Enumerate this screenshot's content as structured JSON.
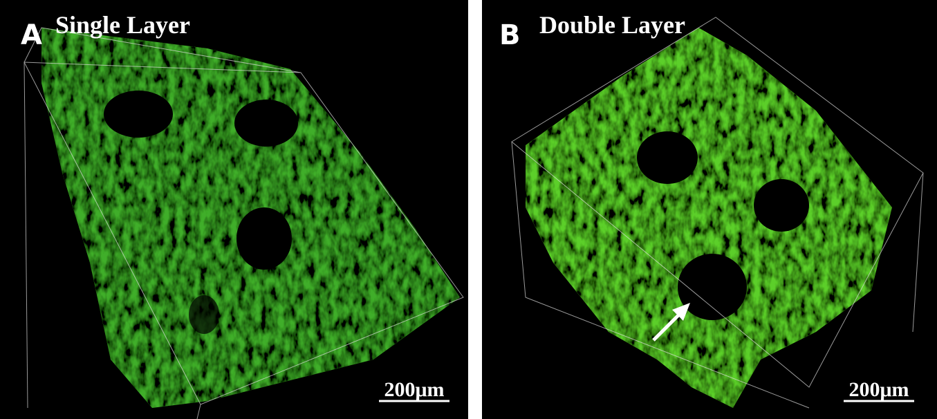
{
  "panels": [
    {
      "letter": "A",
      "title": "Single Layer",
      "scale_label": "200μm"
    },
    {
      "letter": "B",
      "title": "Double Layer",
      "scale_label": "200μm"
    }
  ]
}
